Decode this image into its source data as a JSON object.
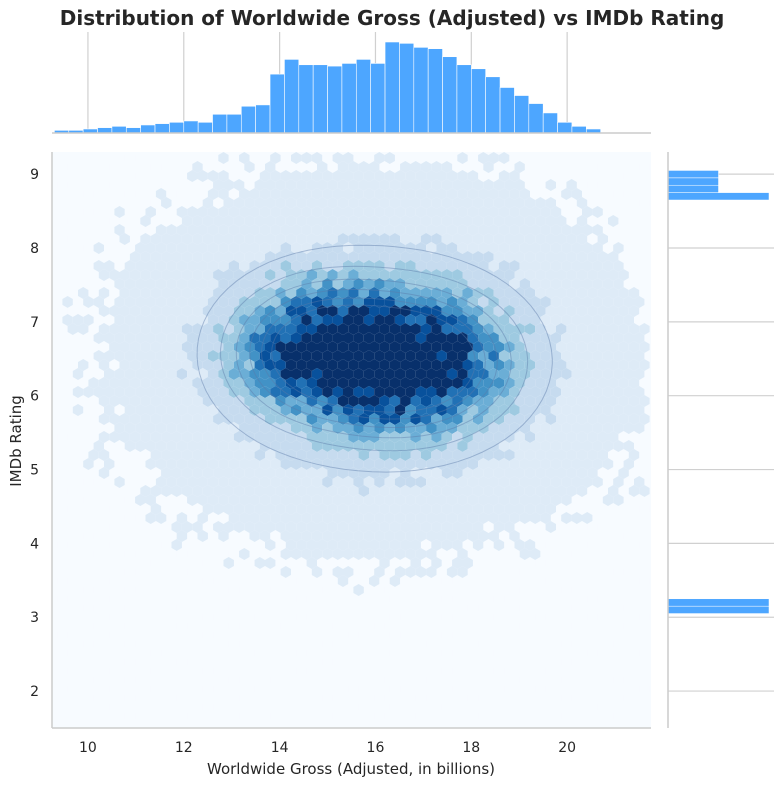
{
  "chart_data": {
    "type": "hexbin",
    "title": "Distribution of Worldwide Gross (Adjusted) vs IMDb Rating",
    "xlabel": "Worldwide Gross (Adjusted, in billions)",
    "ylabel": "IMDb Rating",
    "xlim": [
      9.25,
      21.75
    ],
    "ylim": [
      1.5,
      9.3
    ],
    "xticks": [
      10,
      12,
      14,
      16,
      18,
      20
    ],
    "yticks": [
      2,
      3,
      4,
      5,
      6,
      7,
      8,
      9
    ],
    "grid": true,
    "overlay": "kde-contours",
    "colormap": [
      "#f7fbff",
      "#deebf7",
      "#c6dbef",
      "#9ecae1",
      "#6baed6",
      "#4292c6",
      "#2171b5",
      "#08519c",
      "#08306b"
    ],
    "hist_color": "#4da6ff",
    "density_centers": [
      {
        "x": 14.8,
        "y": 6.6
      },
      {
        "x": 16.8,
        "y": 6.45
      }
    ],
    "marginal_x": {
      "bin_start": 9.3,
      "bin_width": 0.3,
      "counts": [
        2,
        2,
        3,
        4,
        5,
        4,
        6,
        7,
        8,
        9,
        8,
        14,
        14,
        20,
        21,
        44,
        55,
        51,
        51,
        50,
        52,
        55,
        52,
        68,
        67,
        64,
        63,
        57,
        51,
        48,
        42,
        34,
        28,
        22,
        15,
        8,
        5,
        3
      ]
    },
    "marginal_y": {
      "bin_start": 3.05,
      "bin_width": 0.1,
      "counts": [
        2,
        2,
        0,
        0,
        0,
        0,
        0,
        0,
        0,
        0,
        0,
        0,
        0,
        0,
        0,
        0,
        0,
        0,
        0,
        0,
        0,
        0,
        0,
        0,
        0,
        0,
        0,
        0,
        0,
        0,
        0,
        0,
        0,
        0,
        0,
        0,
        0,
        0,
        0,
        0,
        0,
        0,
        0,
        0,
        0,
        0,
        0,
        0,
        0,
        0,
        0,
        0,
        0,
        0,
        0,
        0,
        2,
        1,
        1,
        1,
        0,
        0,
        0,
        0,
        0,
        0,
        0,
        0,
        0,
        0,
        0,
        0,
        0,
        0,
        0,
        0,
        0,
        0,
        0,
        0,
        0,
        0,
        0,
        0,
        0,
        0,
        0,
        0,
        0,
        0,
        0,
        0,
        0,
        0,
        0,
        0,
        0,
        0,
        0,
        0,
        0,
        0,
        0,
        0,
        0,
        0,
        0,
        0,
        0,
        0,
        0,
        0,
        0,
        0,
        0,
        0,
        0,
        0,
        0,
        0,
        0,
        0,
        0,
        0,
        0,
        0,
        0,
        0,
        0,
        0,
        0,
        0,
        0,
        0,
        0,
        0,
        0,
        0,
        0,
        0,
        0,
        0,
        0,
        0,
        0,
        0,
        0,
        0,
        0,
        0,
        0,
        0,
        0,
        0,
        0,
        0,
        0,
        0,
        0,
        0,
        0,
        0,
        0,
        0,
        0,
        0,
        0,
        0,
        0,
        0,
        0,
        0,
        0,
        0,
        0,
        0,
        0,
        0,
        0,
        0,
        0,
        0,
        0,
        0,
        0,
        0,
        0,
        0,
        0,
        0,
        0,
        0,
        0,
        0,
        0,
        0,
        0,
        0,
        0,
        0,
        0,
        0,
        0,
        0,
        0,
        0,
        0
      ]
    }
  }
}
